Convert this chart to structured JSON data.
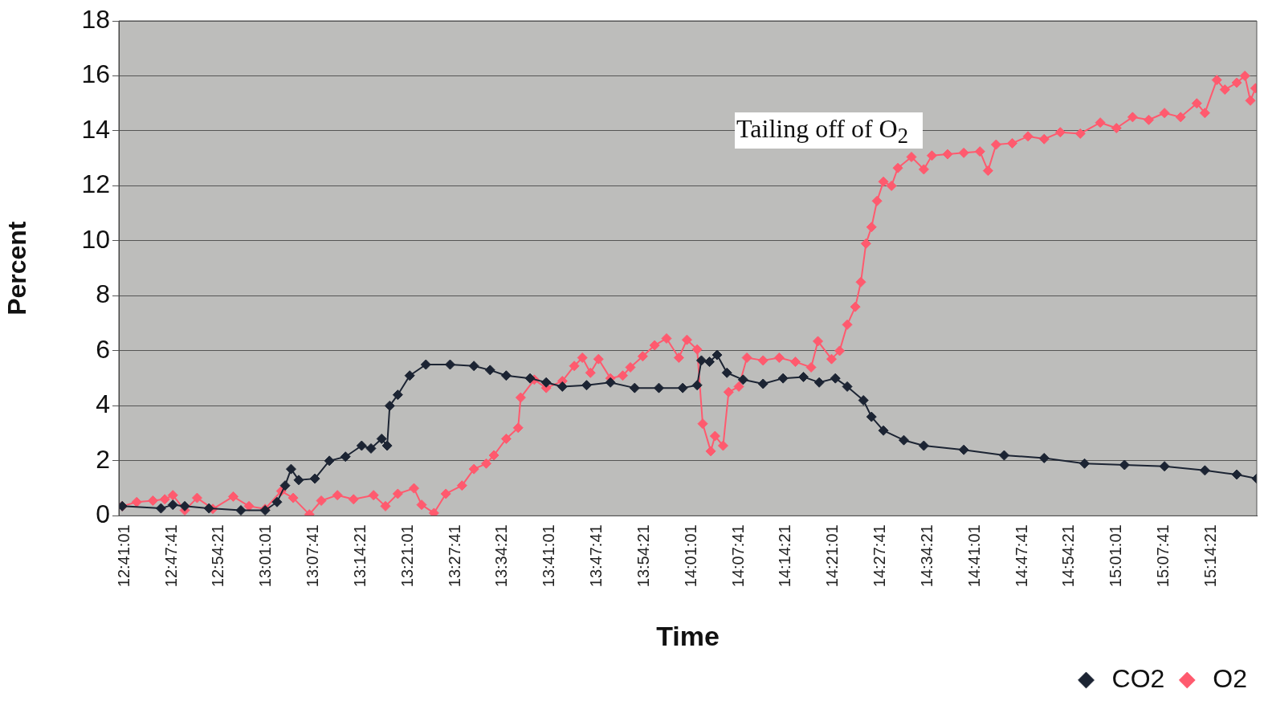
{
  "chart_data": {
    "type": "line",
    "xlabel": "Time",
    "ylabel": "Percent",
    "annotations": [
      "Tailing off of O$_{2}$"
    ],
    "xlim": [
      12.67,
      15.346
    ],
    "ylim": [
      0,
      18
    ],
    "yticks": [
      0,
      2,
      4,
      6,
      8,
      10,
      12,
      14,
      16,
      18
    ],
    "xticks": [
      {
        "value": 12.6836,
        "label": "12:41:01"
      },
      {
        "value": 12.7947,
        "label": "12:47:41"
      },
      {
        "value": 12.9058,
        "label": "12:54:21"
      },
      {
        "value": 13.0169,
        "label": "13:01:01"
      },
      {
        "value": 13.1281,
        "label": "13:07:41"
      },
      {
        "value": 13.2392,
        "label": "13:14:21"
      },
      {
        "value": 13.3503,
        "label": "13:21:01"
      },
      {
        "value": 13.4614,
        "label": "13:27:41"
      },
      {
        "value": 13.5725,
        "label": "13:34:21"
      },
      {
        "value": 13.6836,
        "label": "13:41:01"
      },
      {
        "value": 13.7947,
        "label": "13:47:41"
      },
      {
        "value": 13.9058,
        "label": "13:54:21"
      },
      {
        "value": 14.0169,
        "label": "14:01:01"
      },
      {
        "value": 14.1281,
        "label": "14:07:41"
      },
      {
        "value": 14.2392,
        "label": "14:14:21"
      },
      {
        "value": 14.3503,
        "label": "14:21:01"
      },
      {
        "value": 14.4614,
        "label": "14:27:41"
      },
      {
        "value": 14.5725,
        "label": "14:34:21"
      },
      {
        "value": 14.6836,
        "label": "14:41:01"
      },
      {
        "value": 14.7947,
        "label": "14:47:41"
      },
      {
        "value": 14.9058,
        "label": "14:54:21"
      },
      {
        "value": 15.0169,
        "label": "15:01:01"
      },
      {
        "value": 15.1281,
        "label": "15:07:41"
      },
      {
        "value": 15.2392,
        "label": "15:14:21"
      }
    ],
    "grid": "y",
    "legend": "bottom right",
    "marker": "diamond",
    "line_style": "solid",
    "series": [
      {
        "name": "CO2",
        "color": "#1c2433",
        "x": [
          12.678,
          12.769,
          12.797,
          12.825,
          12.882,
          12.957,
          13.014,
          13.042,
          13.061,
          13.075,
          13.093,
          13.131,
          13.165,
          13.203,
          13.241,
          13.263,
          13.288,
          13.301,
          13.307,
          13.326,
          13.354,
          13.392,
          13.449,
          13.505,
          13.543,
          13.581,
          13.637,
          13.675,
          13.713,
          13.77,
          13.826,
          13.883,
          13.94,
          13.996,
          14.03,
          14.04,
          14.059,
          14.077,
          14.1,
          14.138,
          14.185,
          14.232,
          14.28,
          14.317,
          14.355,
          14.383,
          14.421,
          14.44,
          14.468,
          14.516,
          14.563,
          14.657,
          14.752,
          14.846,
          14.941,
          15.035,
          15.129,
          15.224,
          15.299,
          15.346
        ],
        "values": [
          0.35,
          0.27,
          0.4,
          0.35,
          0.27,
          0.2,
          0.2,
          0.5,
          1.1,
          1.7,
          1.3,
          1.35,
          2.0,
          2.15,
          2.55,
          2.45,
          2.8,
          2.55,
          4.0,
          4.4,
          5.1,
          5.5,
          5.5,
          5.45,
          5.3,
          5.1,
          5.0,
          4.85,
          4.7,
          4.75,
          4.85,
          4.65,
          4.65,
          4.65,
          4.75,
          5.65,
          5.6,
          5.85,
          5.2,
          4.95,
          4.8,
          5.0,
          5.05,
          4.85,
          5.0,
          4.7,
          4.2,
          3.6,
          3.1,
          2.75,
          2.55,
          2.4,
          2.2,
          2.1,
          1.9,
          1.85,
          1.8,
          1.65,
          1.5,
          1.35
        ]
      },
      {
        "name": "O2",
        "color": "#ff5a6e",
        "x": [
          12.678,
          12.712,
          12.75,
          12.778,
          12.797,
          12.825,
          12.854,
          12.891,
          12.939,
          12.976,
          13.014,
          13.052,
          13.08,
          13.118,
          13.146,
          13.184,
          13.222,
          13.269,
          13.297,
          13.326,
          13.364,
          13.382,
          13.411,
          13.439,
          13.477,
          13.505,
          13.534,
          13.552,
          13.581,
          13.609,
          13.615,
          13.647,
          13.675,
          13.713,
          13.741,
          13.76,
          13.779,
          13.798,
          13.826,
          13.855,
          13.873,
          13.902,
          13.93,
          13.958,
          13.987,
          14.006,
          14.03,
          14.043,
          14.062,
          14.072,
          14.091,
          14.104,
          14.128,
          14.147,
          14.185,
          14.223,
          14.261,
          14.298,
          14.314,
          14.346,
          14.365,
          14.383,
          14.402,
          14.415,
          14.427,
          14.44,
          14.453,
          14.468,
          14.487,
          14.502,
          14.534,
          14.563,
          14.582,
          14.619,
          14.657,
          14.695,
          14.714,
          14.733,
          14.771,
          14.808,
          14.846,
          14.884,
          14.931,
          14.978,
          15.016,
          15.054,
          15.092,
          15.129,
          15.167,
          15.205,
          15.224,
          15.252,
          15.271,
          15.299,
          15.318,
          15.331,
          15.343
        ],
        "values": [
          0.35,
          0.5,
          0.55,
          0.6,
          0.75,
          0.2,
          0.65,
          0.25,
          0.7,
          0.35,
          0.25,
          0.9,
          0.65,
          0.05,
          0.55,
          0.75,
          0.6,
          0.75,
          0.35,
          0.8,
          1.0,
          0.4,
          0.1,
          0.8,
          1.1,
          1.7,
          1.9,
          2.2,
          2.8,
          3.2,
          4.3,
          4.95,
          4.65,
          4.9,
          5.45,
          5.75,
          5.2,
          5.7,
          5.0,
          5.1,
          5.4,
          5.8,
          6.2,
          6.45,
          5.75,
          6.4,
          6.05,
          3.35,
          2.35,
          2.9,
          2.55,
          4.5,
          4.7,
          5.75,
          5.65,
          5.75,
          5.6,
          5.4,
          6.35,
          5.7,
          6.0,
          6.95,
          7.6,
          8.5,
          9.9,
          10.5,
          11.45,
          12.15,
          12.0,
          12.65,
          13.05,
          12.6,
          13.1,
          13.15,
          13.2,
          13.25,
          12.55,
          13.5,
          13.55,
          13.8,
          13.7,
          13.95,
          13.9,
          14.3,
          14.1,
          14.5,
          14.4,
          14.65,
          14.5,
          15.0,
          14.65,
          15.85,
          15.5,
          15.75,
          16.0,
          15.1,
          15.55
        ]
      }
    ]
  }
}
